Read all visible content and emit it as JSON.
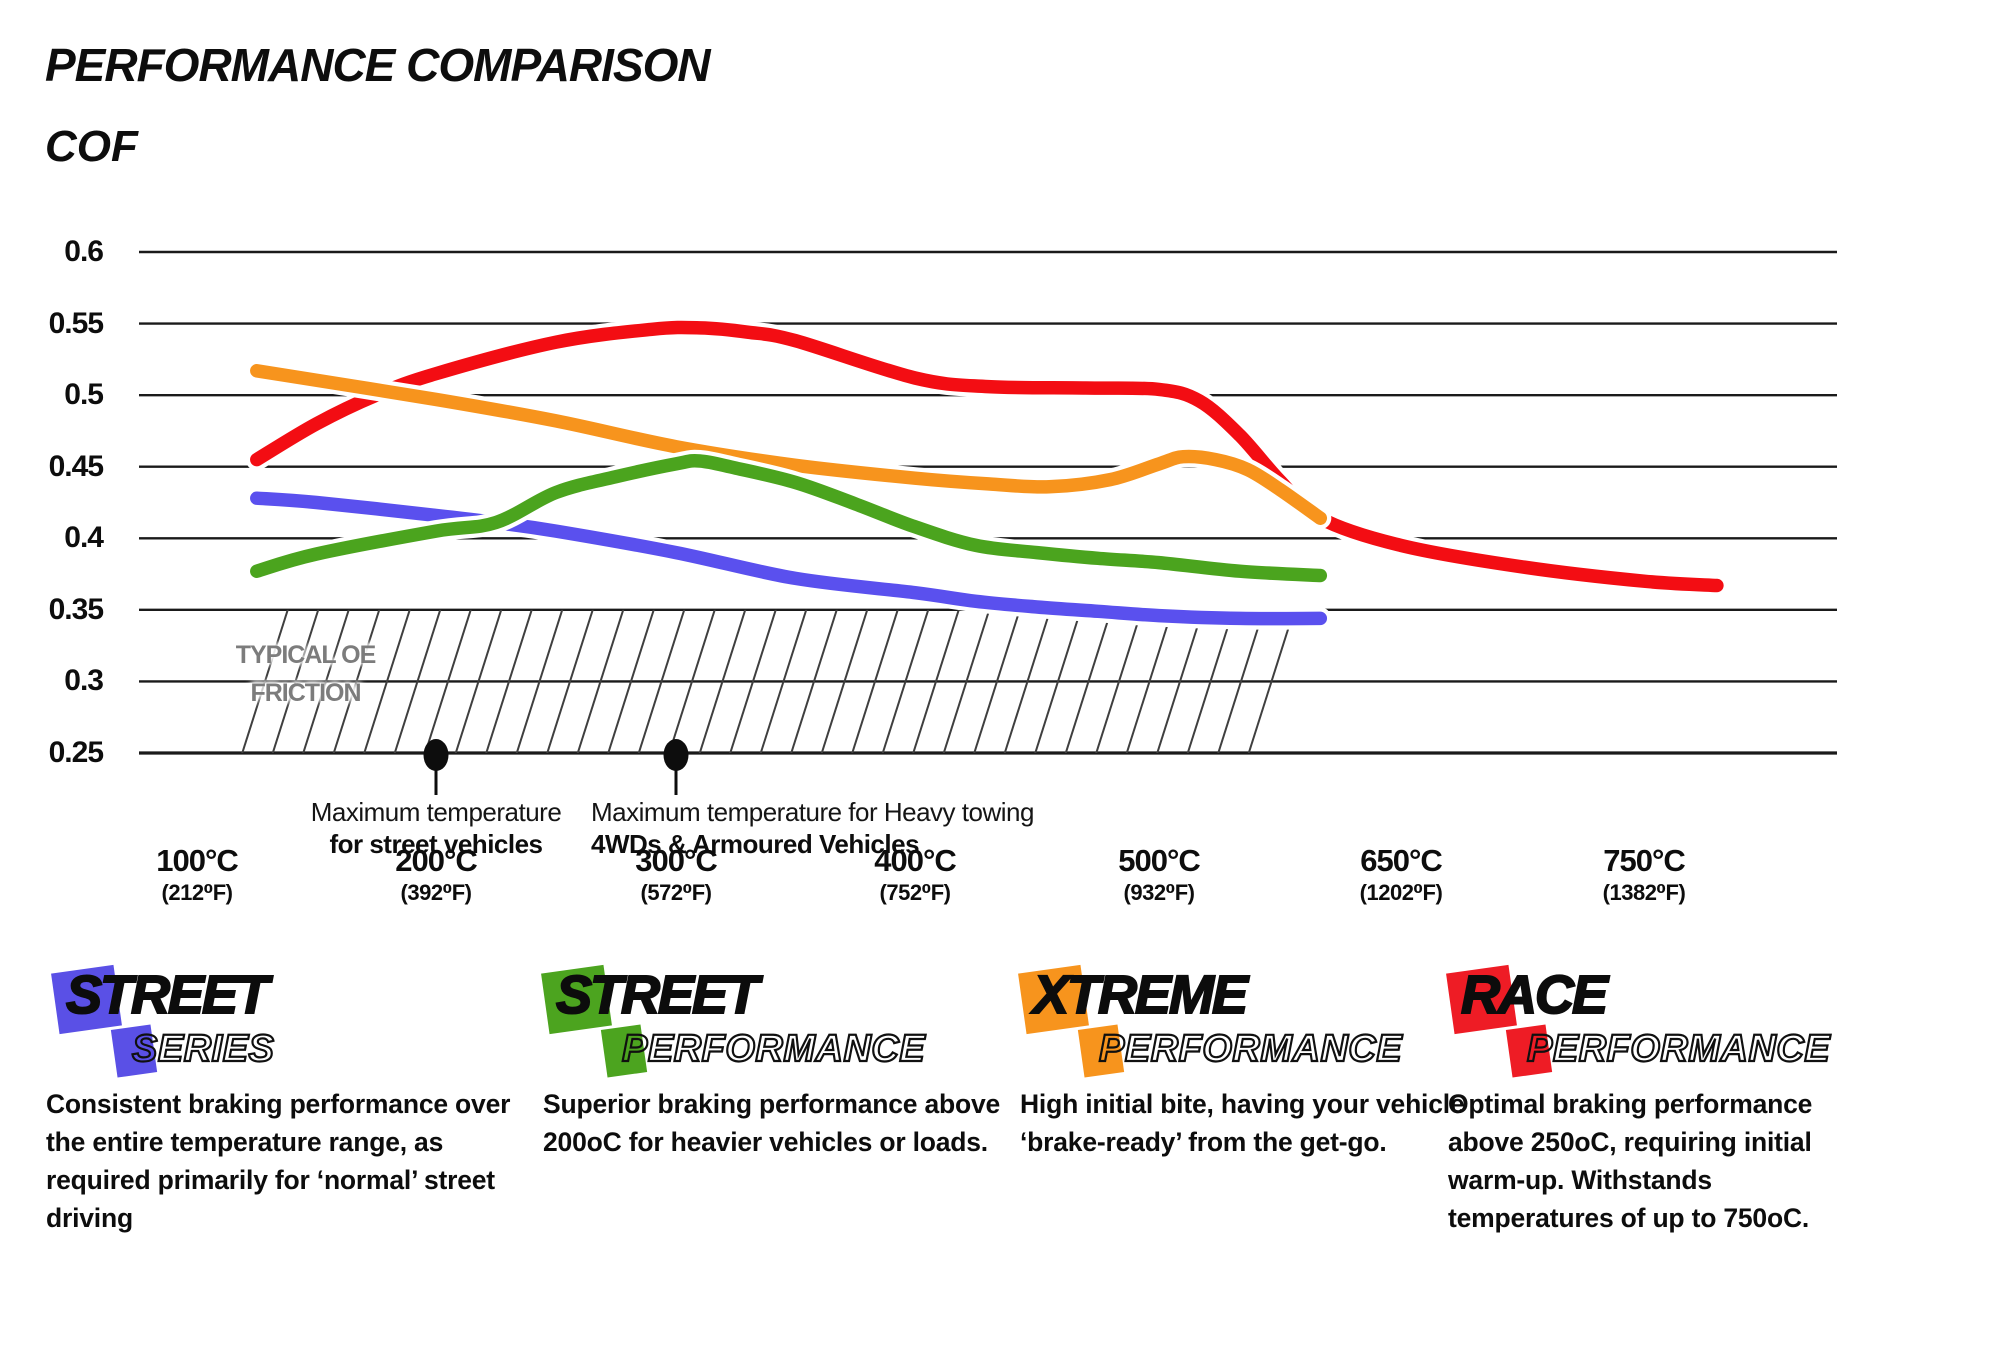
{
  "title": "PERFORMANCE COMPARISON",
  "axis_label": "COF",
  "chart_data": {
    "type": "line",
    "title": "PERFORMANCE COMPARISON",
    "ylabel": "COF",
    "ylim": [
      0.25,
      0.6
    ],
    "grid": true,
    "y_ticks": [
      "0.6",
      "0.55",
      "0.5",
      "0.45",
      "0.4",
      "0.35",
      "0.3",
      "0.25"
    ],
    "x_ticks": [
      {
        "t": 100,
        "label_c": "100°C",
        "label_f": "(212⁰F)"
      },
      {
        "t": 200,
        "label_c": "200°C",
        "label_f": "(392⁰F)"
      },
      {
        "t": 300,
        "label_c": "300°C",
        "label_f": "(572⁰F)"
      },
      {
        "t": 400,
        "label_c": "400°C",
        "label_f": "(752⁰F)"
      },
      {
        "t": 500,
        "label_c": "500°C",
        "label_f": "(932⁰F)"
      },
      {
        "t": 650,
        "label_c": "650°C",
        "label_f": "(1202⁰F)"
      },
      {
        "t": 750,
        "label_c": "750°C",
        "label_f": "(1382⁰F)"
      }
    ],
    "series": [
      {
        "name": "Street Series",
        "color": "#5a50ee",
        "points": [
          [
            125,
            0.428
          ],
          [
            150,
            0.425
          ],
          [
            200,
            0.416
          ],
          [
            225,
            0.411
          ],
          [
            250,
            0.405
          ],
          [
            300,
            0.39
          ],
          [
            350,
            0.372
          ],
          [
            400,
            0.362
          ],
          [
            425,
            0.356
          ],
          [
            450,
            0.352
          ],
          [
            475,
            0.349
          ],
          [
            500,
            0.346
          ],
          [
            550,
            0.344
          ],
          [
            600,
            0.344
          ]
        ]
      },
      {
        "name": "Street Performance",
        "color": "#4ba41e",
        "points": [
          [
            125,
            0.377
          ],
          [
            150,
            0.389
          ],
          [
            200,
            0.405
          ],
          [
            225,
            0.411
          ],
          [
            250,
            0.432
          ],
          [
            275,
            0.443
          ],
          [
            300,
            0.452
          ],
          [
            310,
            0.454
          ],
          [
            325,
            0.449
          ],
          [
            350,
            0.439
          ],
          [
            375,
            0.424
          ],
          [
            400,
            0.408
          ],
          [
            425,
            0.395
          ],
          [
            450,
            0.39
          ],
          [
            475,
            0.386
          ],
          [
            500,
            0.383
          ],
          [
            550,
            0.377
          ],
          [
            600,
            0.374
          ]
        ]
      },
      {
        "name": "Xtreme Performance",
        "color": "#f7941d",
        "points": [
          [
            125,
            0.517
          ],
          [
            200,
            0.497
          ],
          [
            250,
            0.482
          ],
          [
            300,
            0.464
          ],
          [
            350,
            0.451
          ],
          [
            400,
            0.442
          ],
          [
            430,
            0.438
          ],
          [
            455,
            0.436
          ],
          [
            480,
            0.441
          ],
          [
            500,
            0.452
          ],
          [
            515,
            0.457
          ],
          [
            535,
            0.455
          ],
          [
            555,
            0.448
          ],
          [
            575,
            0.434
          ],
          [
            600,
            0.414
          ]
        ]
      },
      {
        "name": "Race Performance",
        "color": "#f30d13",
        "points": [
          [
            125,
            0.455
          ],
          [
            150,
            0.48
          ],
          [
            175,
            0.5
          ],
          [
            200,
            0.515
          ],
          [
            250,
            0.537
          ],
          [
            290,
            0.546
          ],
          [
            310,
            0.547
          ],
          [
            330,
            0.544
          ],
          [
            350,
            0.538
          ],
          [
            400,
            0.512
          ],
          [
            430,
            0.506
          ],
          [
            470,
            0.505
          ],
          [
            500,
            0.504
          ],
          [
            525,
            0.496
          ],
          [
            550,
            0.472
          ],
          [
            575,
            0.44
          ],
          [
            600,
            0.414
          ],
          [
            650,
            0.395
          ],
          [
            700,
            0.38
          ],
          [
            750,
            0.37
          ],
          [
            780,
            0.367
          ]
        ]
      }
    ],
    "oe_band": {
      "label_line1": "TYPICAL OE",
      "label_line2": "FRICTION",
      "cof_min": 0.25,
      "cof_max": 0.35
    },
    "markers": [
      {
        "t": 200,
        "align": "center",
        "line1": "Maximum temperature",
        "line2": "for street vehicles"
      },
      {
        "t": 300,
        "align": "left",
        "line1": "Maximum temperature for Heavy towing",
        "line2": "4WDs & Armoured Vehicles"
      }
    ]
  },
  "legend": [
    {
      "word1": "STREET",
      "word2": "SERIES",
      "color": "#5a50e6",
      "desc": "Consistent braking performance over the entire temperature range, as required primarily for ‘normal’ street driving"
    },
    {
      "word1": "STREET",
      "word2": "PERFORMANCE",
      "color": "#4ca41f",
      "desc": "Superior braking performance above 200oC for heavier vehicles or loads."
    },
    {
      "word1": "XTREME",
      "word2": "PERFORMANCE",
      "color": "#f7941d",
      "desc": "High initial bite, having your vehicle ‘brake-ready’ from the get-go."
    },
    {
      "word1": "RACE",
      "word2": "PERFORMANCE",
      "color": "#ee1c25",
      "desc": "Optimal braking performance above 250oC, requiring initial warm-up. Withstands temperatures of up to 750oC."
    }
  ]
}
